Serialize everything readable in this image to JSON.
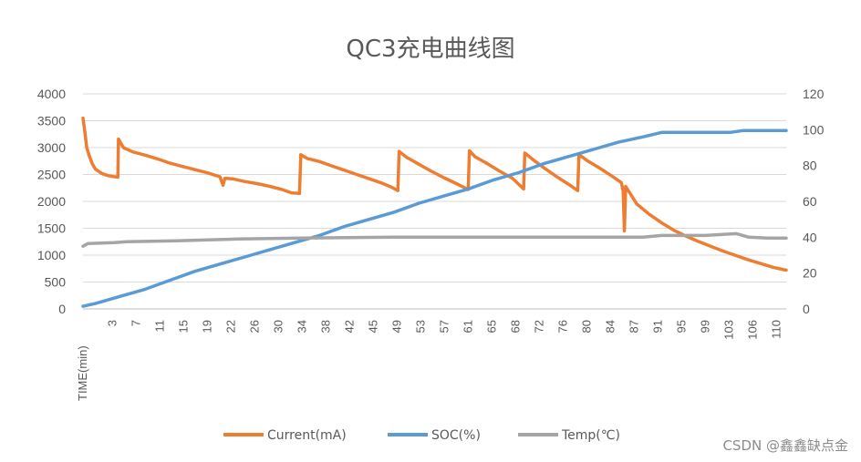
{
  "chart_data": {
    "type": "line",
    "title": "QC3充电曲线图",
    "xlabel": "TIME(min)",
    "ylabel": "",
    "ylabel_right": "",
    "ylim": [
      0,
      4000
    ],
    "ylim_right": [
      0,
      120
    ],
    "xlim": [
      0,
      113
    ],
    "left_ticks": [
      "0",
      "500",
      "1000",
      "1500",
      "2000",
      "2500",
      "3000",
      "3500",
      "4000"
    ],
    "right_ticks": [
      "0",
      "20",
      "40",
      "60",
      "80",
      "100",
      "120"
    ],
    "x_tick_labels": [
      "3",
      "7",
      "11",
      "15",
      "19",
      "22",
      "26",
      "30",
      "34",
      "38",
      "42",
      "45",
      "49",
      "53",
      "57",
      "61",
      "65",
      "68",
      "72",
      "76",
      "80",
      "84",
      "87",
      "91",
      "95",
      "99",
      "103",
      "106",
      "110"
    ],
    "grid": true,
    "legend_position": "bottom",
    "series": [
      {
        "name": "Current(mA)",
        "axis": "left",
        "color": "#ED7D31",
        "points": [
          [
            0.0,
            3550
          ],
          [
            0.3,
            3300
          ],
          [
            0.6,
            3000
          ],
          [
            1.0,
            2850
          ],
          [
            1.5,
            2700
          ],
          [
            2.0,
            2600
          ],
          [
            3.0,
            2520
          ],
          [
            4.0,
            2480
          ],
          [
            5.0,
            2460
          ],
          [
            5.6,
            2450
          ],
          [
            5.7,
            3160
          ],
          [
            6.5,
            3000
          ],
          [
            8.0,
            2920
          ],
          [
            10.0,
            2860
          ],
          [
            12.0,
            2790
          ],
          [
            14.0,
            2710
          ],
          [
            16.0,
            2650
          ],
          [
            18.0,
            2590
          ],
          [
            20.0,
            2530
          ],
          [
            22.0,
            2460
          ],
          [
            22.5,
            2300
          ],
          [
            22.8,
            2430
          ],
          [
            24.0,
            2420
          ],
          [
            26.0,
            2370
          ],
          [
            28.0,
            2330
          ],
          [
            30.0,
            2280
          ],
          [
            32.0,
            2220
          ],
          [
            33.5,
            2160
          ],
          [
            34.8,
            2150
          ],
          [
            35.0,
            2870
          ],
          [
            36.0,
            2800
          ],
          [
            38.0,
            2740
          ],
          [
            40.0,
            2660
          ],
          [
            42.0,
            2580
          ],
          [
            44.0,
            2500
          ],
          [
            46.0,
            2420
          ],
          [
            48.0,
            2340
          ],
          [
            49.5,
            2270
          ],
          [
            50.6,
            2200
          ],
          [
            50.8,
            2930
          ],
          [
            52.0,
            2820
          ],
          [
            54.0,
            2690
          ],
          [
            56.0,
            2560
          ],
          [
            58.0,
            2440
          ],
          [
            60.0,
            2330
          ],
          [
            61.9,
            2220
          ],
          [
            62.1,
            2940
          ],
          [
            63.0,
            2830
          ],
          [
            65.0,
            2700
          ],
          [
            67.0,
            2560
          ],
          [
            69.0,
            2430
          ],
          [
            70.8,
            2230
          ],
          [
            71.0,
            2900
          ],
          [
            72.5,
            2760
          ],
          [
            74.0,
            2630
          ],
          [
            76.0,
            2470
          ],
          [
            78.0,
            2320
          ],
          [
            79.5,
            2200
          ],
          [
            79.7,
            2870
          ],
          [
            81.0,
            2760
          ],
          [
            83.0,
            2620
          ],
          [
            85.0,
            2470
          ],
          [
            86.5,
            2350
          ],
          [
            86.8,
            2200
          ],
          [
            87.0,
            1450
          ],
          [
            87.2,
            2280
          ],
          [
            89.0,
            1950
          ],
          [
            91.0,
            1760
          ],
          [
            93.0,
            1600
          ],
          [
            95.0,
            1460
          ],
          [
            97.0,
            1350
          ],
          [
            99.0,
            1250
          ],
          [
            101.0,
            1160
          ],
          [
            103.0,
            1070
          ],
          [
            105.0,
            990
          ],
          [
            107.0,
            910
          ],
          [
            109.0,
            840
          ],
          [
            111.0,
            770
          ],
          [
            113.0,
            720
          ]
        ]
      },
      {
        "name": "SOC(%)",
        "axis": "right",
        "color": "#5B9BD5",
        "points": [
          [
            0.0,
            1.5
          ],
          [
            2.0,
            3
          ],
          [
            6.0,
            7
          ],
          [
            10.0,
            11
          ],
          [
            14.0,
            16
          ],
          [
            18.0,
            21
          ],
          [
            22.0,
            25
          ],
          [
            26.0,
            29
          ],
          [
            30.0,
            33
          ],
          [
            34.0,
            37
          ],
          [
            38.0,
            41
          ],
          [
            42.0,
            46
          ],
          [
            46.0,
            50
          ],
          [
            50.0,
            54
          ],
          [
            54.0,
            59
          ],
          [
            58.0,
            63
          ],
          [
            62.0,
            67
          ],
          [
            66.0,
            72
          ],
          [
            70.0,
            76
          ],
          [
            74.0,
            81
          ],
          [
            78.0,
            85
          ],
          [
            82.0,
            89
          ],
          [
            86.0,
            93
          ],
          [
            90.0,
            96
          ],
          [
            93.0,
            98.5
          ],
          [
            96.0,
            98.5
          ],
          [
            100.0,
            98.5
          ],
          [
            104.0,
            98.5
          ],
          [
            106.0,
            99.5
          ],
          [
            110.0,
            99.5
          ],
          [
            113.0,
            99.5
          ]
        ]
      },
      {
        "name": "Temp(℃)",
        "axis": "right",
        "color": "#A5A5A5",
        "points": [
          [
            0.0,
            35
          ],
          [
            0.8,
            36.5
          ],
          [
            5.0,
            37
          ],
          [
            7.0,
            37.5
          ],
          [
            15.0,
            38
          ],
          [
            20.0,
            38.5
          ],
          [
            25.0,
            39
          ],
          [
            35.0,
            39.5
          ],
          [
            50.0,
            40
          ],
          [
            60.0,
            40
          ],
          [
            70.0,
            40
          ],
          [
            80.0,
            40
          ],
          [
            90.0,
            40
          ],
          [
            93.0,
            41
          ],
          [
            100.0,
            41
          ],
          [
            105.0,
            42
          ],
          [
            107.0,
            40
          ],
          [
            110.0,
            39.5
          ],
          [
            113.0,
            39.5
          ]
        ]
      }
    ]
  },
  "watermark": "CSDN @鑫鑫缺点金"
}
